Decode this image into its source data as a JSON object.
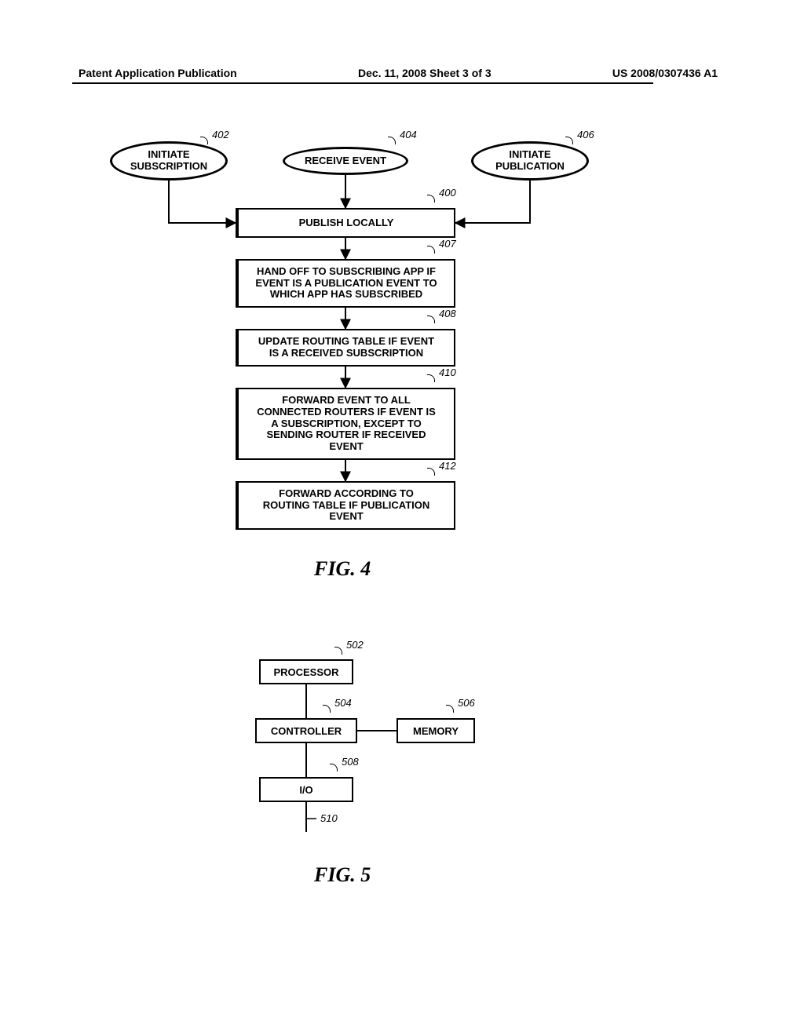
{
  "header": {
    "left": "Patent Application Publication",
    "center": "Dec. 11, 2008  Sheet 3 of 3",
    "right": "US 2008/0307436 A1"
  },
  "fig4": {
    "caption": "FIG. 4",
    "ellipses": {
      "e402": {
        "text": "INITIATE\nSUBSCRIPTION",
        "ref": "402"
      },
      "e404": {
        "text": "RECEIVE EVENT",
        "ref": "404"
      },
      "e406": {
        "text": "INITIATE\nPUBLICATION",
        "ref": "406"
      }
    },
    "boxes": {
      "b400": {
        "text": "PUBLISH LOCALLY",
        "ref": "400"
      },
      "b407": {
        "text": "HAND OFF TO SUBSCRIBING APP IF\nEVENT IS A PUBLICATION EVENT TO\nWHICH APP HAS SUBSCRIBED",
        "ref": "407"
      },
      "b408": {
        "text": "UPDATE ROUTING TABLE IF EVENT\nIS A RECEIVED SUBSCRIPTION",
        "ref": "408"
      },
      "b410": {
        "text": "FORWARD EVENT TO ALL\nCONNECTED ROUTERS IF EVENT IS\nA SUBSCRIPTION, EXCEPT TO\nSENDING ROUTER IF RECEIVED\nEVENT",
        "ref": "410"
      },
      "b412": {
        "text": "FORWARD ACCORDING TO\nROUTING TABLE IF PUBLICATION\nEVENT",
        "ref": "412"
      }
    }
  },
  "fig5": {
    "caption": "FIG. 5",
    "boxes": {
      "b502": {
        "text": "PROCESSOR",
        "ref": "502"
      },
      "b504": {
        "text": "CONTROLLER",
        "ref": "504"
      },
      "b506": {
        "text": "MEMORY",
        "ref": "506"
      },
      "b508": {
        "text": "I/O",
        "ref": "508"
      }
    },
    "ref510": "510"
  },
  "style": {
    "line_color": "#000000",
    "line_width": 2,
    "background": "#ffffff",
    "font_box": 13,
    "font_caption": 26
  }
}
